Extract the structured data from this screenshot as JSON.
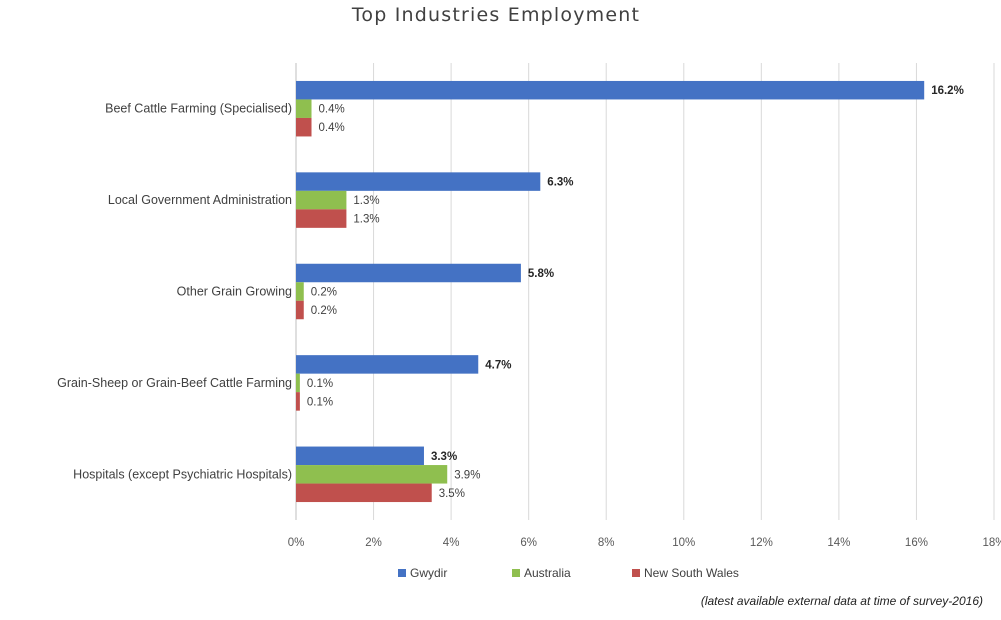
{
  "chart_data": {
    "type": "bar",
    "orientation": "horizontal",
    "title": "Top Industries Employment",
    "note": "(latest available external data at time of survey-2016)",
    "categories": [
      "Beef Cattle Farming (Specialised)",
      "Local Government Administration",
      "Other Grain Growing",
      "Grain-Sheep or Grain-Beef Cattle Farming",
      "Hospitals (except Psychiatric Hospitals)"
    ],
    "series": [
      {
        "name": "Gwydir",
        "color": "#4472C4",
        "values": [
          16.2,
          6.3,
          5.8,
          4.7,
          3.3
        ],
        "labels": [
          "16.2%",
          "6.3%",
          "5.8%",
          "4.7%",
          "3.3%"
        ],
        "bold_labels": true
      },
      {
        "name": "Australia",
        "color": "#8FBF4F",
        "values": [
          0.4,
          1.3,
          0.2,
          0.1,
          3.9
        ],
        "labels": [
          "0.4%",
          "1.3%",
          "0.2%",
          "0.1%",
          "3.9%"
        ],
        "bold_labels": false
      },
      {
        "name": "New South Wales",
        "color": "#C0504D",
        "values": [
          0.4,
          1.3,
          0.2,
          0.1,
          3.5
        ],
        "labels": [
          "0.4%",
          "1.3%",
          "0.2%",
          "0.1%",
          "3.5%"
        ],
        "bold_labels": false
      }
    ],
    "xlim": [
      0,
      18
    ],
    "xticks": [
      0,
      2,
      4,
      6,
      8,
      10,
      12,
      14,
      16,
      18
    ],
    "xtick_labels": [
      "0%",
      "2%",
      "4%",
      "6%",
      "8%",
      "10%",
      "12%",
      "14%",
      "16%",
      "18%"
    ],
    "grid": true,
    "legend_position": "bottom"
  }
}
